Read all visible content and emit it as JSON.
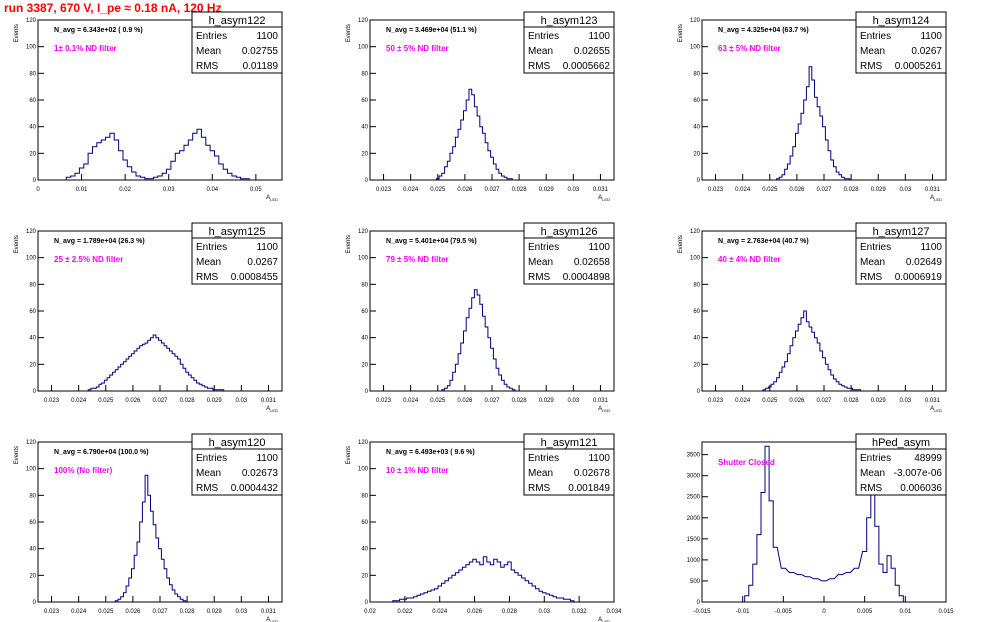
{
  "canvas_title": "run 3387,   670 V, I_pe ≈ 0.18 nA, 120 Hz",
  "stat_labels": {
    "entries": "Entries",
    "mean": "Mean",
    "rms": "RMS"
  },
  "chart_data": [
    {
      "type": "histogram",
      "name": "h_asym122",
      "entries": "1100",
      "mean": "0.02755",
      "rms": "0.01189",
      "navg": "N_avg = 6.343e+02 ( 0.9 %)",
      "filter": "1± 0.1% ND filter",
      "ylabel": "Events",
      "xlabel": "A_LED",
      "xlim": [
        0,
        0.056
      ],
      "ylim": [
        0,
        120
      ],
      "xticks": [
        0,
        0.01,
        0.02,
        0.03,
        0.04,
        0.05
      ],
      "xtick_labels": [
        "0",
        "0.01",
        "0.02",
        "0.03",
        "0.04",
        "0.05"
      ],
      "yticks": [
        0,
        20,
        40,
        60,
        80,
        100,
        120
      ],
      "x": [
        0.007,
        0.008,
        0.009,
        0.01,
        0.011,
        0.012,
        0.013,
        0.014,
        0.015,
        0.016,
        0.017,
        0.018,
        0.019,
        0.02,
        0.021,
        0.022,
        0.023,
        0.024,
        0.025,
        0.026,
        0.027,
        0.028,
        0.029,
        0.03,
        0.031,
        0.032,
        0.033,
        0.034,
        0.035,
        0.036,
        0.037,
        0.038,
        0.039,
        0.04,
        0.041,
        0.042,
        0.043,
        0.044,
        0.045,
        0.046,
        0.047,
        0.048
      ],
      "values": [
        2,
        3,
        5,
        9,
        12,
        20,
        25,
        28,
        30,
        32,
        35,
        30,
        22,
        15,
        10,
        6,
        3,
        2,
        1,
        1,
        2,
        3,
        5,
        8,
        14,
        20,
        22,
        26,
        30,
        35,
        38,
        32,
        26,
        22,
        18,
        12,
        8,
        5,
        3,
        2,
        1,
        1
      ]
    },
    {
      "type": "histogram",
      "name": "h_asym123",
      "entries": "1100",
      "mean": "0.02655",
      "rms": "0.0005662",
      "navg": "N_avg = 3.469e+04 (51.1 %)",
      "filter": "50 ± 5% ND filter",
      "ylabel": "Events",
      "xlabel": "A_LED",
      "xlim": [
        0.0225,
        0.0315
      ],
      "ylim": [
        0,
        120
      ],
      "xticks": [
        0.023,
        0.024,
        0.025,
        0.026,
        0.027,
        0.028,
        0.029,
        0.03,
        0.031
      ],
      "xtick_labels": [
        "0.023",
        "0.024",
        "0.025",
        "0.026",
        "0.027",
        "0.028",
        "0.029",
        "0.03",
        "0.031"
      ],
      "yticks": [
        0,
        20,
        40,
        60,
        80,
        100,
        120
      ],
      "x": [
        0.025,
        0.0251,
        0.0252,
        0.0253,
        0.0254,
        0.0255,
        0.0256,
        0.0257,
        0.0258,
        0.0259,
        0.026,
        0.0261,
        0.0262,
        0.0263,
        0.0264,
        0.0265,
        0.0266,
        0.0267,
        0.0268,
        0.0269,
        0.027,
        0.0271,
        0.0272,
        0.0273,
        0.0274,
        0.0275,
        0.0276,
        0.0277
      ],
      "values": [
        1,
        3,
        5,
        10,
        14,
        20,
        25,
        32,
        38,
        45,
        52,
        60,
        68,
        64,
        55,
        48,
        40,
        35,
        28,
        22,
        17,
        12,
        8,
        5,
        3,
        2,
        1,
        1
      ]
    },
    {
      "type": "histogram",
      "name": "h_asym124",
      "entries": "1100",
      "mean": "0.0267",
      "rms": "0.0005261",
      "navg": "N_avg = 4.325e+04 (63.7 %)",
      "filter": "63 ± 5% ND filter",
      "ylabel": "Events",
      "xlabel": "A_LED",
      "xlim": [
        0.0225,
        0.0315
      ],
      "ylim": [
        0,
        120
      ],
      "xticks": [
        0.023,
        0.024,
        0.025,
        0.026,
        0.027,
        0.028,
        0.029,
        0.03,
        0.031
      ],
      "xtick_labels": [
        "0.023",
        "0.024",
        "0.025",
        "0.026",
        "0.027",
        "0.028",
        "0.029",
        "0.03",
        "0.031"
      ],
      "yticks": [
        0,
        20,
        40,
        60,
        80,
        100,
        120
      ],
      "x": [
        0.0253,
        0.0254,
        0.0255,
        0.0256,
        0.0257,
        0.0258,
        0.0259,
        0.026,
        0.0261,
        0.0262,
        0.0263,
        0.0264,
        0.0265,
        0.0266,
        0.0267,
        0.0268,
        0.0269,
        0.027,
        0.0271,
        0.0272,
        0.0273,
        0.0274,
        0.0275,
        0.0276,
        0.0277,
        0.0278,
        0.0279
      ],
      "values": [
        1,
        2,
        4,
        8,
        12,
        18,
        25,
        35,
        42,
        50,
        60,
        70,
        85,
        75,
        62,
        55,
        48,
        40,
        30,
        22,
        15,
        10,
        6,
        4,
        2,
        1,
        1
      ]
    },
    {
      "type": "histogram",
      "name": "h_asym125",
      "entries": "1100",
      "mean": "0.0267",
      "rms": "0.0008455",
      "navg": "N_avg = 1.789e+04 (26.3 %)",
      "filter": "25 ± 2.5% ND filter",
      "ylabel": "Events",
      "xlabel": "A_LED",
      "xlim": [
        0.0225,
        0.0315
      ],
      "ylim": [
        0,
        120
      ],
      "xticks": [
        0.023,
        0.024,
        0.025,
        0.026,
        0.027,
        0.028,
        0.029,
        0.03,
        0.031
      ],
      "xtick_labels": [
        "0.023",
        "0.024",
        "0.025",
        "0.026",
        "0.027",
        "0.028",
        "0.029",
        "0.03",
        "0.031"
      ],
      "yticks": [
        0,
        20,
        40,
        60,
        80,
        100,
        120
      ],
      "x": [
        0.0244,
        0.0245,
        0.0246,
        0.0247,
        0.0248,
        0.0249,
        0.025,
        0.0251,
        0.0252,
        0.0253,
        0.0254,
        0.0255,
        0.0256,
        0.0257,
        0.0258,
        0.0259,
        0.026,
        0.0261,
        0.0262,
        0.0263,
        0.0264,
        0.0265,
        0.0266,
        0.0267,
        0.0268,
        0.0269,
        0.027,
        0.0271,
        0.0272,
        0.0273,
        0.0274,
        0.0275,
        0.0276,
        0.0277,
        0.0278,
        0.0279,
        0.028,
        0.0281,
        0.0282,
        0.0283,
        0.0284,
        0.0285,
        0.0286,
        0.0287,
        0.0288,
        0.0289,
        0.029,
        0.0291,
        0.0292,
        0.0293
      ],
      "values": [
        1,
        2,
        2,
        3,
        5,
        6,
        8,
        10,
        12,
        14,
        16,
        18,
        20,
        22,
        24,
        26,
        28,
        30,
        32,
        34,
        35,
        36,
        38,
        40,
        42,
        40,
        38,
        36,
        34,
        32,
        30,
        28,
        26,
        24,
        20,
        17,
        14,
        12,
        10,
        8,
        6,
        5,
        4,
        3,
        2,
        2,
        1,
        1,
        1,
        1
      ]
    },
    {
      "type": "histogram",
      "name": "h_asym126",
      "entries": "1100",
      "mean": "0.02658",
      "rms": "0.0004898",
      "navg": "N_avg = 5.401e+04 (79.5 %)",
      "filter": "79 ± 5% ND filter",
      "ylabel": "Events",
      "xlabel": "A_LED",
      "xlim": [
        0.0225,
        0.0315
      ],
      "ylim": [
        0,
        120
      ],
      "xticks": [
        0.023,
        0.024,
        0.025,
        0.026,
        0.027,
        0.028,
        0.029,
        0.03,
        0.031
      ],
      "xtick_labels": [
        "0.023",
        "0.024",
        "0.025",
        "0.026",
        "0.027",
        "0.028",
        "0.029",
        "0.03",
        "0.031"
      ],
      "yticks": [
        0,
        20,
        40,
        60,
        80,
        100,
        120
      ],
      "x": [
        0.0252,
        0.0253,
        0.0254,
        0.0255,
        0.0256,
        0.0257,
        0.0258,
        0.0259,
        0.026,
        0.0261,
        0.0262,
        0.0263,
        0.0264,
        0.0265,
        0.0266,
        0.0267,
        0.0268,
        0.0269,
        0.027,
        0.0271,
        0.0272,
        0.0273,
        0.0274,
        0.0275,
        0.0276,
        0.0277,
        0.0278
      ],
      "values": [
        1,
        2,
        4,
        8,
        14,
        20,
        28,
        36,
        45,
        55,
        62,
        70,
        76,
        72,
        65,
        56,
        48,
        40,
        32,
        24,
        17,
        12,
        8,
        5,
        3,
        2,
        1
      ]
    },
    {
      "type": "histogram",
      "name": "h_asym127",
      "entries": "1100",
      "mean": "0.02649",
      "rms": "0.0006919",
      "navg": "N_avg = 2.763e+04 (40.7 %)",
      "filter": "40 ± 4% ND filter",
      "ylabel": "Events",
      "xlabel": "A_LED",
      "xlim": [
        0.0225,
        0.0315
      ],
      "ylim": [
        0,
        120
      ],
      "xticks": [
        0.023,
        0.024,
        0.025,
        0.026,
        0.027,
        0.028,
        0.029,
        0.03,
        0.031
      ],
      "xtick_labels": [
        "0.023",
        "0.024",
        "0.025",
        "0.026",
        "0.027",
        "0.028",
        "0.029",
        "0.03",
        "0.031"
      ],
      "yticks": [
        0,
        20,
        40,
        60,
        80,
        100,
        120
      ],
      "x": [
        0.0248,
        0.0249,
        0.025,
        0.0251,
        0.0252,
        0.0253,
        0.0254,
        0.0255,
        0.0256,
        0.0257,
        0.0258,
        0.0259,
        0.026,
        0.0261,
        0.0262,
        0.0263,
        0.0264,
        0.0265,
        0.0266,
        0.0267,
        0.0268,
        0.0269,
        0.027,
        0.0271,
        0.0272,
        0.0273,
        0.0274,
        0.0275,
        0.0276,
        0.0277,
        0.0278,
        0.0279,
        0.028,
        0.0281,
        0.0282,
        0.0283
      ],
      "values": [
        1,
        2,
        3,
        5,
        7,
        10,
        14,
        18,
        22,
        28,
        34,
        40,
        45,
        50,
        55,
        60,
        52,
        48,
        44,
        40,
        36,
        30,
        25,
        20,
        16,
        12,
        9,
        7,
        5,
        4,
        3,
        2,
        2,
        1,
        1,
        1
      ]
    },
    {
      "type": "histogram",
      "name": "h_asym120",
      "entries": "1100",
      "mean": "0.02673",
      "rms": "0.0004432",
      "navg": "N_avg = 6.790e+04 (100.0 %)",
      "filter": "100% (No filter)",
      "ylabel": "Events",
      "xlabel": "A_LED",
      "xlim": [
        0.0225,
        0.0315
      ],
      "ylim": [
        0,
        120
      ],
      "xticks": [
        0.023,
        0.024,
        0.025,
        0.026,
        0.027,
        0.028,
        0.029,
        0.03,
        0.031
      ],
      "xtick_labels": [
        "0.023",
        "0.024",
        "0.025",
        "0.026",
        "0.027",
        "0.028",
        "0.029",
        "0.03",
        "0.031"
      ],
      "yticks": [
        0,
        20,
        40,
        60,
        80,
        100,
        120
      ],
      "x": [
        0.0254,
        0.0255,
        0.0256,
        0.0257,
        0.0258,
        0.0259,
        0.026,
        0.0261,
        0.0262,
        0.0263,
        0.0264,
        0.0265,
        0.0266,
        0.0267,
        0.0268,
        0.0269,
        0.027,
        0.0271,
        0.0272,
        0.0273,
        0.0274,
        0.0275,
        0.0276,
        0.0277,
        0.0278,
        0.0279
      ],
      "values": [
        1,
        2,
        4,
        7,
        12,
        18,
        25,
        35,
        45,
        60,
        75,
        95,
        80,
        68,
        58,
        48,
        40,
        32,
        25,
        18,
        13,
        9,
        6,
        4,
        2,
        1
      ]
    },
    {
      "type": "histogram",
      "name": "h_asym121",
      "entries": "1100",
      "mean": "0.02678",
      "rms": "0.001849",
      "navg": "N_avg = 6.493e+03 ( 9.6 %)",
      "filter": "10 ± 1% ND filter",
      "ylabel": "Events",
      "xlabel": "A_LED",
      "xlim": [
        0.02,
        0.034
      ],
      "ylim": [
        0,
        120
      ],
      "xticks": [
        0.02,
        0.022,
        0.024,
        0.026,
        0.028,
        0.03,
        0.032,
        0.034
      ],
      "xtick_labels": [
        "0.02",
        "0.022",
        "0.024",
        "0.026",
        "0.028",
        "0.03",
        "0.032",
        "0.034"
      ],
      "yticks": [
        0,
        20,
        40,
        60,
        80,
        100,
        120
      ],
      "x": [
        0.0214,
        0.0216,
        0.0218,
        0.022,
        0.0222,
        0.0224,
        0.0226,
        0.0228,
        0.023,
        0.0232,
        0.0234,
        0.0236,
        0.0238,
        0.024,
        0.0242,
        0.0244,
        0.0246,
        0.0248,
        0.025,
        0.0252,
        0.0254,
        0.0256,
        0.0258,
        0.026,
        0.0262,
        0.0264,
        0.0266,
        0.0268,
        0.027,
        0.0272,
        0.0274,
        0.0276,
        0.0278,
        0.028,
        0.0282,
        0.0284,
        0.0286,
        0.0288,
        0.029,
        0.0292,
        0.0294,
        0.0296,
        0.0298,
        0.03,
        0.0302,
        0.0304,
        0.0306,
        0.0308,
        0.031,
        0.0312,
        0.0314,
        0.0316
      ],
      "values": [
        1,
        1,
        2,
        2,
        3,
        3,
        4,
        5,
        6,
        7,
        8,
        9,
        10,
        12,
        14,
        16,
        18,
        20,
        22,
        24,
        26,
        28,
        30,
        32,
        30,
        28,
        34,
        30,
        28,
        32,
        30,
        26,
        28,
        30,
        24,
        22,
        20,
        18,
        16,
        14,
        12,
        10,
        8,
        7,
        6,
        5,
        4,
        3,
        3,
        2,
        2,
        1
      ]
    },
    {
      "type": "histogram",
      "name": "hPed_asym",
      "entries": "48999",
      "mean": "-3.007e-06",
      "rms": "0.006036",
      "navg": "",
      "filter": "Shutter Closed",
      "ylabel": "",
      "xlabel": "",
      "xlim": [
        -0.015,
        0.015
      ],
      "ylim": [
        0,
        3800
      ],
      "xticks": [
        -0.015,
        -0.01,
        -0.005,
        0,
        0.005,
        0.01,
        0.015
      ],
      "xtick_labels": [
        "-0.015",
        "-0.01",
        "-0.005",
        "0",
        "0.005",
        "0.01",
        "0.015"
      ],
      "yticks": [
        0,
        500,
        1000,
        1500,
        2000,
        2500,
        3000,
        3500
      ],
      "x": [
        -0.0095,
        -0.009,
        -0.0085,
        -0.008,
        -0.0075,
        -0.007,
        -0.0065,
        -0.006,
        -0.005,
        -0.004,
        -0.003,
        -0.002,
        -0.001,
        0,
        0.001,
        0.002,
        0.003,
        0.004,
        0.005,
        0.0055,
        0.006,
        0.0065,
        0.007,
        0.0075,
        0.008,
        0.0085,
        0.009,
        0.0095
      ],
      "values": [
        150,
        400,
        900,
        1600,
        2600,
        3700,
        2400,
        1300,
        800,
        700,
        650,
        600,
        550,
        500,
        550,
        650,
        700,
        800,
        1200,
        2000,
        2900,
        1800,
        900,
        700,
        1100,
        800,
        400,
        150
      ]
    }
  ]
}
